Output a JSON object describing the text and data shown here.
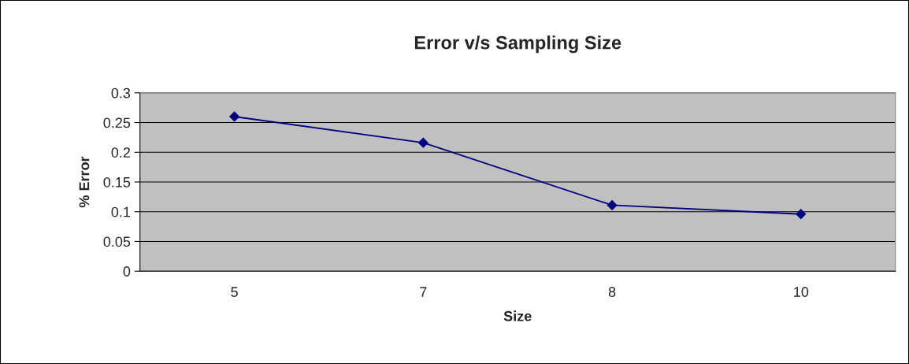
{
  "chart_data": {
    "type": "line",
    "title": "Error v/s Sampling Size",
    "xlabel": "Size",
    "ylabel": "% Error",
    "categories": [
      "5",
      "7",
      "8",
      "10"
    ],
    "series": [
      {
        "color": "#000080",
        "values": [
          0.26,
          0.216,
          0.111,
          0.096
        ]
      }
    ],
    "ylim": [
      0,
      0.3
    ],
    "yticks": [
      0,
      0.05,
      0.1,
      0.15,
      0.2,
      0.25,
      0.3
    ],
    "grid": "y",
    "legend": false,
    "marker": "diamond",
    "line_style": "solid"
  }
}
